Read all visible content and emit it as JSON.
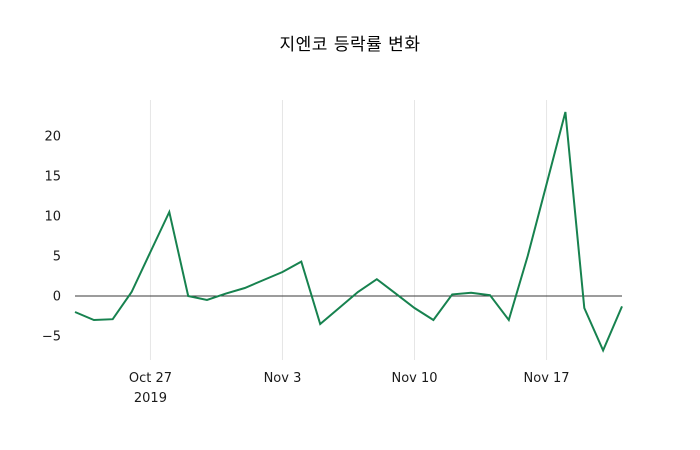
{
  "chart_data": {
    "type": "line",
    "title": "지엔코 등락률 변화",
    "series_name": "등락률",
    "line_color": "#17824f",
    "zero_line_color": "#3a3a3a",
    "grid_color": "#e6e6e6",
    "grid": "vertical-only",
    "zero_line": true,
    "legend": "none",
    "xlabel": "",
    "ylabel": "",
    "ylim": [
      -8,
      24.5
    ],
    "yticks": [
      20,
      15,
      10,
      5,
      0,
      -5
    ],
    "x": [
      "Oct 23",
      "Oct 24",
      "Oct 25",
      "Oct 26",
      "Oct 27",
      "Oct 28",
      "Oct 29",
      "Oct 30",
      "Oct 31",
      "Nov 1",
      "Nov 2",
      "Nov 3",
      "Nov 4",
      "Nov 5",
      "Nov 6",
      "Nov 7",
      "Nov 8",
      "Nov 9",
      "Nov 10",
      "Nov 11",
      "Nov 12",
      "Nov 13",
      "Nov 14",
      "Nov 15",
      "Nov 16",
      "Nov 17",
      "Nov 18",
      "Nov 19",
      "Nov 20",
      "Nov 21"
    ],
    "values": [
      -2,
      -3,
      -2.9,
      0.5,
      5.5,
      10.5,
      0,
      -0.5,
      0.3,
      1,
      2,
      3,
      4.3,
      -3.5,
      -1.5,
      0.5,
      2.1,
      0.3,
      -1.5,
      -3,
      0.2,
      0.4,
      0.1,
      -3,
      5,
      14,
      23,
      -1.5,
      -6.8,
      -1.3
    ],
    "xticks": [
      {
        "index": 4,
        "label": "Oct 27",
        "sublabel": "2019"
      },
      {
        "index": 11,
        "label": "Nov 3",
        "sublabel": ""
      },
      {
        "index": 18,
        "label": "Nov 10",
        "sublabel": ""
      },
      {
        "index": 25,
        "label": "Nov 17",
        "sublabel": ""
      }
    ]
  }
}
